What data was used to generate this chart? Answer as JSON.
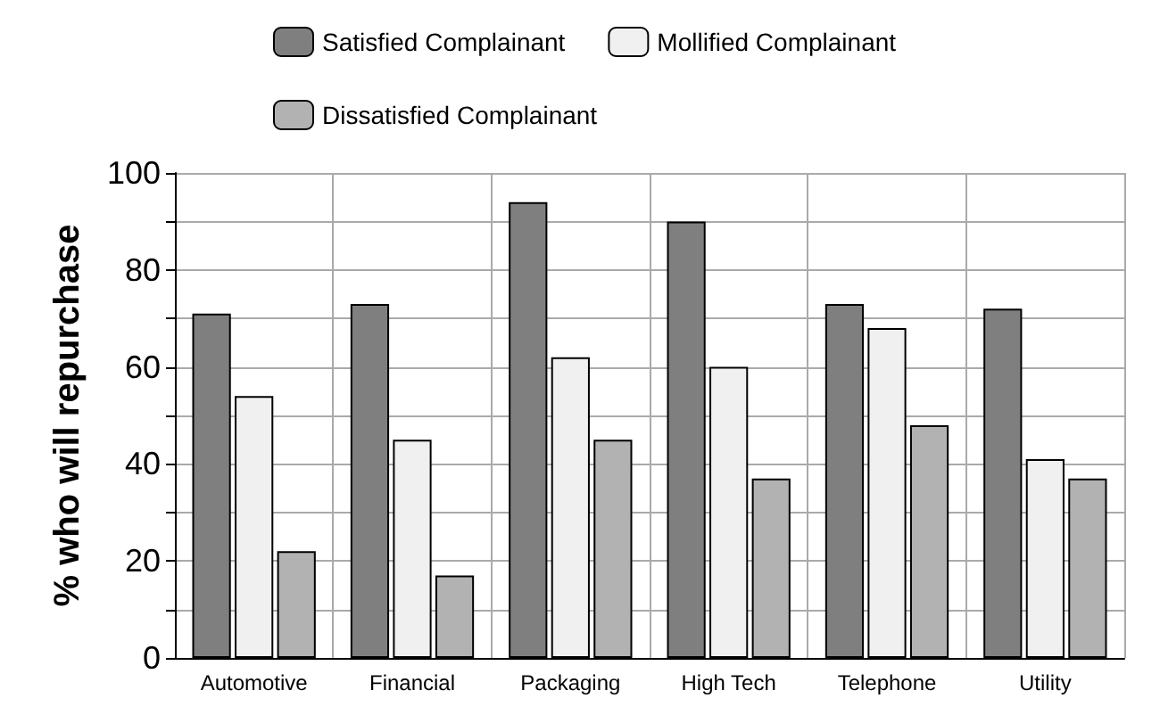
{
  "chart_data": {
    "type": "bar",
    "ylabel": "% who will repurchase",
    "categories": [
      "Automotive",
      "Financial",
      "Packaging",
      "High Tech",
      "Telephone",
      "Utility"
    ],
    "series": [
      {
        "name": "Satisfied Complainant",
        "color": "#7f7f7f",
        "values": [
          71,
          73,
          94,
          90,
          73,
          72
        ]
      },
      {
        "name": "Mollified Complainant",
        "color": "#f0f0f0",
        "values": [
          54,
          45,
          62,
          60,
          68,
          41
        ]
      },
      {
        "name": "Dissatisfied Complainant",
        "color": "#b2b2b2",
        "values": [
          22,
          17,
          45,
          37,
          48,
          37
        ]
      }
    ],
    "ylim": [
      0,
      100
    ],
    "yticks": [
      0,
      {
        "value": 10,
        "label": null
      },
      20,
      {
        "value": 30,
        "label": null
      },
      40,
      {
        "value": 50,
        "label": null
      },
      60,
      {
        "value": 70,
        "label": null
      },
      80,
      {
        "value": 90,
        "label": null
      },
      100
    ],
    "grid": true,
    "legend": "top"
  }
}
